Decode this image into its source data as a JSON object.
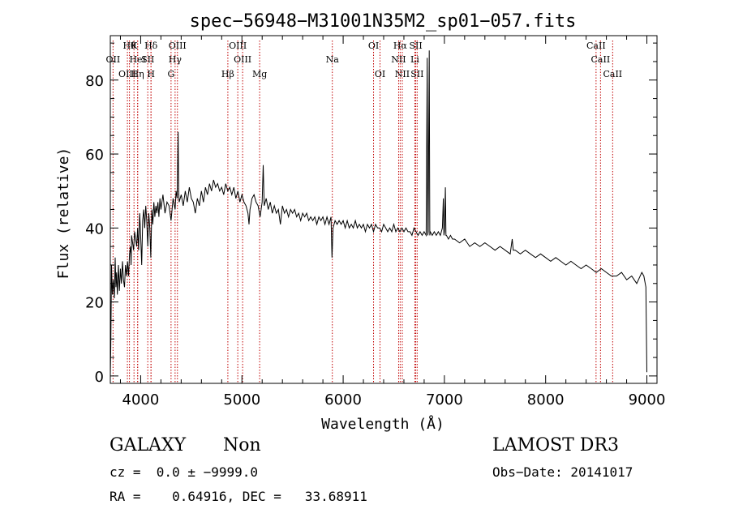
{
  "chart_data": {
    "type": "line",
    "title": "spec−56948−M31001N35M2_sp01−057.fits",
    "xlabel": "Wavelength (Å)",
    "ylabel": "Flux (relative)",
    "xlim": [
      3700,
      9100
    ],
    "ylim": [
      -2,
      92
    ],
    "xticks": [
      4000,
      5000,
      6000,
      7000,
      8000,
      9000
    ],
    "yticks": [
      0,
      20,
      40,
      60,
      80
    ],
    "grid": false,
    "series": [
      {
        "name": "flux",
        "color": "#000000",
        "points": [
          [
            3700,
            0
          ],
          [
            3705,
            8
          ],
          [
            3712,
            30
          ],
          [
            3720,
            22
          ],
          [
            3730,
            26
          ],
          [
            3740,
            21
          ],
          [
            3748,
            32
          ],
          [
            3755,
            24
          ],
          [
            3762,
            28
          ],
          [
            3770,
            22
          ],
          [
            3780,
            30
          ],
          [
            3790,
            23
          ],
          [
            3800,
            29
          ],
          [
            3810,
            25
          ],
          [
            3820,
            31
          ],
          [
            3830,
            26
          ],
          [
            3840,
            24
          ],
          [
            3850,
            30
          ],
          [
            3860,
            27
          ],
          [
            3870,
            31
          ],
          [
            3880,
            27
          ],
          [
            3890,
            33
          ],
          [
            3900,
            35
          ],
          [
            3905,
            30
          ],
          [
            3910,
            38
          ],
          [
            3920,
            36
          ],
          [
            3930,
            34
          ],
          [
            3940,
            39
          ],
          [
            3950,
            37
          ],
          [
            3960,
            35
          ],
          [
            3970,
            40
          ],
          [
            3980,
            34
          ],
          [
            3990,
            44
          ],
          [
            4000,
            38
          ],
          [
            4010,
            30
          ],
          [
            4020,
            42
          ],
          [
            4030,
            45
          ],
          [
            4040,
            40
          ],
          [
            4050,
            46
          ],
          [
            4060,
            42
          ],
          [
            4070,
            35
          ],
          [
            4080,
            44
          ],
          [
            4090,
            40
          ],
          [
            4100,
            32
          ],
          [
            4110,
            45
          ],
          [
            4120,
            41
          ],
          [
            4130,
            47
          ],
          [
            4140,
            43
          ],
          [
            4150,
            46
          ],
          [
            4160,
            44
          ],
          [
            4170,
            47
          ],
          [
            4180,
            43
          ],
          [
            4190,
            48
          ],
          [
            4200,
            45
          ],
          [
            4220,
            49
          ],
          [
            4240,
            44
          ],
          [
            4260,
            47
          ],
          [
            4280,
            46
          ],
          [
            4300,
            42
          ],
          [
            4320,
            48
          ],
          [
            4340,
            45
          ],
          [
            4350,
            50
          ],
          [
            4360,
            48
          ],
          [
            4370,
            66
          ],
          [
            4375,
            50
          ],
          [
            4380,
            47
          ],
          [
            4400,
            49
          ],
          [
            4420,
            46
          ],
          [
            4440,
            50
          ],
          [
            4460,
            47
          ],
          [
            4480,
            51
          ],
          [
            4500,
            48
          ],
          [
            4520,
            47
          ],
          [
            4540,
            44
          ],
          [
            4560,
            48
          ],
          [
            4580,
            46
          ],
          [
            4600,
            50
          ],
          [
            4620,
            47
          ],
          [
            4640,
            51
          ],
          [
            4660,
            49
          ],
          [
            4680,
            52
          ],
          [
            4700,
            50
          ],
          [
            4720,
            53
          ],
          [
            4740,
            51
          ],
          [
            4760,
            52
          ],
          [
            4780,
            50
          ],
          [
            4800,
            51
          ],
          [
            4820,
            49
          ],
          [
            4840,
            52
          ],
          [
            4860,
            50
          ],
          [
            4880,
            51
          ],
          [
            4900,
            49
          ],
          [
            4920,
            51
          ],
          [
            4940,
            48
          ],
          [
            4960,
            50
          ],
          [
            4980,
            47
          ],
          [
            5000,
            49
          ],
          [
            5020,
            47
          ],
          [
            5040,
            46
          ],
          [
            5060,
            44
          ],
          [
            5070,
            41
          ],
          [
            5080,
            45
          ],
          [
            5100,
            48
          ],
          [
            5120,
            49
          ],
          [
            5140,
            47
          ],
          [
            5160,
            46
          ],
          [
            5180,
            43
          ],
          [
            5200,
            47
          ],
          [
            5210,
            57
          ],
          [
            5220,
            46
          ],
          [
            5240,
            48
          ],
          [
            5260,
            45
          ],
          [
            5280,
            47
          ],
          [
            5300,
            44
          ],
          [
            5320,
            46
          ],
          [
            5340,
            44
          ],
          [
            5360,
            45
          ],
          [
            5380,
            41
          ],
          [
            5400,
            46
          ],
          [
            5420,
            44
          ],
          [
            5440,
            45
          ],
          [
            5460,
            43
          ],
          [
            5480,
            45
          ],
          [
            5500,
            44
          ],
          [
            5520,
            45
          ],
          [
            5540,
            43
          ],
          [
            5560,
            44
          ],
          [
            5580,
            42
          ],
          [
            5600,
            44
          ],
          [
            5620,
            43
          ],
          [
            5640,
            44
          ],
          [
            5660,
            42
          ],
          [
            5680,
            43
          ],
          [
            5700,
            42
          ],
          [
            5720,
            43
          ],
          [
            5740,
            41
          ],
          [
            5760,
            43
          ],
          [
            5780,
            42
          ],
          [
            5800,
            43
          ],
          [
            5820,
            41
          ],
          [
            5840,
            43
          ],
          [
            5860,
            41
          ],
          [
            5880,
            43
          ],
          [
            5890,
            32
          ],
          [
            5900,
            40
          ],
          [
            5920,
            42
          ],
          [
            5940,
            41
          ],
          [
            5960,
            42
          ],
          [
            5980,
            41
          ],
          [
            6000,
            42
          ],
          [
            6020,
            40
          ],
          [
            6040,
            42
          ],
          [
            6060,
            40
          ],
          [
            6080,
            41
          ],
          [
            6100,
            40
          ],
          [
            6120,
            42
          ],
          [
            6140,
            40
          ],
          [
            6160,
            41
          ],
          [
            6180,
            40
          ],
          [
            6200,
            41
          ],
          [
            6220,
            39
          ],
          [
            6240,
            41
          ],
          [
            6260,
            40
          ],
          [
            6280,
            41
          ],
          [
            6300,
            39
          ],
          [
            6320,
            41
          ],
          [
            6340,
            40
          ],
          [
            6360,
            40
          ],
          [
            6380,
            39
          ],
          [
            6400,
            41
          ],
          [
            6420,
            40
          ],
          [
            6440,
            39
          ],
          [
            6460,
            40
          ],
          [
            6480,
            39
          ],
          [
            6500,
            41
          ],
          [
            6520,
            39
          ],
          [
            6540,
            40
          ],
          [
            6560,
            39
          ],
          [
            6580,
            40
          ],
          [
            6600,
            39
          ],
          [
            6620,
            40
          ],
          [
            6640,
            39
          ],
          [
            6660,
            39
          ],
          [
            6680,
            38
          ],
          [
            6700,
            40
          ],
          [
            6720,
            39
          ],
          [
            6740,
            38
          ],
          [
            6760,
            39
          ],
          [
            6780,
            38
          ],
          [
            6800,
            39
          ],
          [
            6820,
            38
          ],
          [
            6830,
            86
          ],
          [
            6836,
            38
          ],
          [
            6840,
            39
          ],
          [
            6850,
            88
          ],
          [
            6856,
            38
          ],
          [
            6860,
            39
          ],
          [
            6880,
            38
          ],
          [
            6900,
            39
          ],
          [
            6920,
            38
          ],
          [
            6940,
            39
          ],
          [
            6960,
            38
          ],
          [
            6980,
            40
          ],
          [
            6990,
            48
          ],
          [
            6995,
            38
          ],
          [
            7000,
            39
          ],
          [
            7010,
            51
          ],
          [
            7015,
            38
          ],
          [
            7020,
            38
          ],
          [
            7040,
            37
          ],
          [
            7060,
            38
          ],
          [
            7080,
            37
          ],
          [
            7100,
            37
          ],
          [
            7150,
            36
          ],
          [
            7200,
            37
          ],
          [
            7250,
            35
          ],
          [
            7300,
            36
          ],
          [
            7350,
            35
          ],
          [
            7400,
            36
          ],
          [
            7450,
            35
          ],
          [
            7500,
            34
          ],
          [
            7550,
            35
          ],
          [
            7600,
            34
          ],
          [
            7650,
            33
          ],
          [
            7670,
            37
          ],
          [
            7680,
            34
          ],
          [
            7700,
            34
          ],
          [
            7750,
            33
          ],
          [
            7800,
            34
          ],
          [
            7850,
            33
          ],
          [
            7900,
            32
          ],
          [
            7950,
            33
          ],
          [
            8000,
            32
          ],
          [
            8050,
            31
          ],
          [
            8100,
            32
          ],
          [
            8150,
            31
          ],
          [
            8200,
            30
          ],
          [
            8250,
            31
          ],
          [
            8300,
            30
          ],
          [
            8350,
            29
          ],
          [
            8400,
            30
          ],
          [
            8450,
            29
          ],
          [
            8500,
            28
          ],
          [
            8550,
            29
          ],
          [
            8600,
            28
          ],
          [
            8650,
            27
          ],
          [
            8700,
            27
          ],
          [
            8750,
            28
          ],
          [
            8800,
            26
          ],
          [
            8850,
            27
          ],
          [
            8900,
            25
          ],
          [
            8950,
            28
          ],
          [
            8970,
            27
          ],
          [
            8990,
            24
          ],
          [
            9000,
            1
          ]
        ]
      }
    ],
    "lines": [
      {
        "label": "OII",
        "wavelength": 3727,
        "row": 1
      },
      {
        "label": "OIII",
        "wavelength": 3869,
        "row": 2
      },
      {
        "label": "Hθ",
        "wavelength": 3889,
        "row": 0
      },
      {
        "label": "HeI",
        "wavelength": 3970,
        "row": 1
      },
      {
        "label": "Hη",
        "wavelength": 3970,
        "row": 2
      },
      {
        "label": "K",
        "wavelength": 3934,
        "row": 0
      },
      {
        "label": "SII",
        "wavelength": 4070,
        "row": 1
      },
      {
        "label": "H",
        "wavelength": 4102,
        "row": 2
      },
      {
        "label": "Hδ",
        "wavelength": 4102,
        "row": 0
      },
      {
        "label": "OIII",
        "wavelength": 4363,
        "row": 0
      },
      {
        "label": "Hγ",
        "wavelength": 4340,
        "row": 1
      },
      {
        "label": "G",
        "wavelength": 4300,
        "row": 2
      },
      {
        "label": "OIII",
        "wavelength": 4959,
        "row": 0
      },
      {
        "label": "OIII",
        "wavelength": 5007,
        "row": 1
      },
      {
        "label": "Hβ",
        "wavelength": 4861,
        "row": 2
      },
      {
        "label": "Mg",
        "wavelength": 5175,
        "row": 2
      },
      {
        "label": "Na",
        "wavelength": 5893,
        "row": 1
      },
      {
        "label": "OI",
        "wavelength": 6300,
        "row": 0
      },
      {
        "label": "OI",
        "wavelength": 6364,
        "row": 2
      },
      {
        "label": "Hα",
        "wavelength": 6563,
        "row": 0
      },
      {
        "label": "SII",
        "wavelength": 6717,
        "row": 0
      },
      {
        "label": "NII",
        "wavelength": 6548,
        "row": 1
      },
      {
        "label": "Li",
        "wavelength": 6708,
        "row": 1
      },
      {
        "label": "NII",
        "wavelength": 6584,
        "row": 2
      },
      {
        "label": "SII",
        "wavelength": 6731,
        "row": 2
      },
      {
        "label": "CaII",
        "wavelength": 8498,
        "row": 0
      },
      {
        "label": "CaII",
        "wavelength": 8542,
        "row": 1
      },
      {
        "label": "CaII",
        "wavelength": 8662,
        "row": 2
      }
    ],
    "line_color": "#c00000"
  },
  "info": {
    "class_label": "GALAXY",
    "subclass_label": "Non",
    "survey": "LAMOST DR3",
    "redshift": "cz =  0.0 ± −9999.0",
    "obs_date": "Obs−Date: 20141017",
    "coords": "RA =    0.64916, DEC =   33.68911"
  }
}
